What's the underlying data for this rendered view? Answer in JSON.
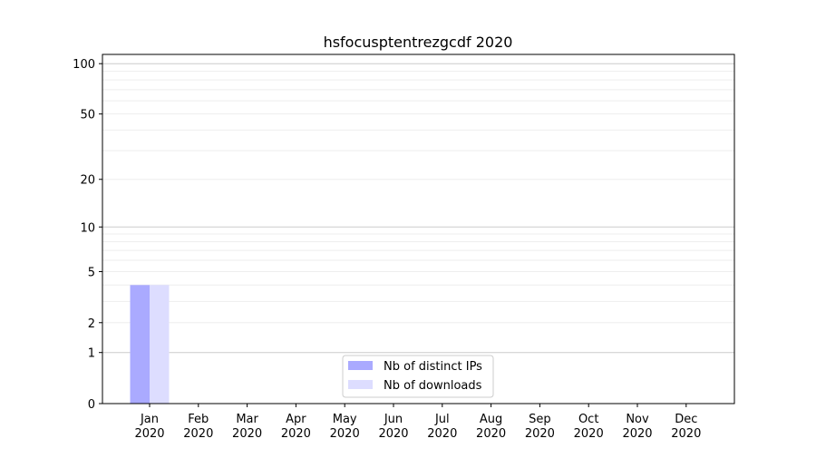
{
  "chart_data": {
    "type": "bar",
    "title": "hsfocusptentrezgcdf 2020",
    "xlabel": "",
    "ylabel": "",
    "yscale": "log(y+1)",
    "ylim": [
      0,
      113
    ],
    "yticks": [
      0,
      1,
      2,
      5,
      10,
      20,
      50,
      100
    ],
    "grid": true,
    "legend_position": "lower-center",
    "categories": [
      "Jan\n2020",
      "Feb\n2020",
      "Mar\n2020",
      "Apr\n2020",
      "May\n2020",
      "Jun\n2020",
      "Jul\n2020",
      "Aug\n2020",
      "Sep\n2020",
      "Oct\n2020",
      "Nov\n2020",
      "Dec\n2020"
    ],
    "series": [
      {
        "name": "Nb of distinct IPs",
        "color": "#aaaaff",
        "values": [
          4,
          0,
          0,
          0,
          0,
          0,
          0,
          0,
          0,
          0,
          0,
          0
        ]
      },
      {
        "name": "Nb of downloads",
        "color": "#ddddff",
        "values": [
          4,
          0,
          0,
          0,
          0,
          0,
          0,
          0,
          0,
          0,
          0,
          0
        ]
      }
    ]
  }
}
